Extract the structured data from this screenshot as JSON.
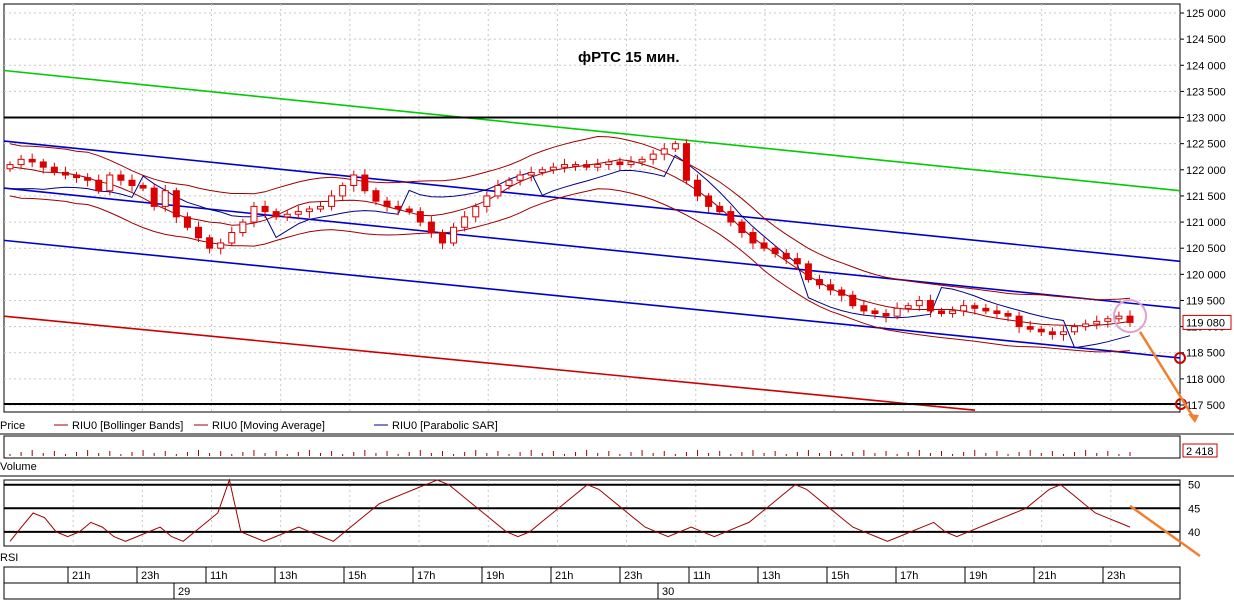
{
  "chart_data": [
    {
      "type": "candlestick",
      "title": "фРТС   15 мин.",
      "ylim": [
        117500,
        125000
      ],
      "y_ticks": [
        "125 000",
        "124 500",
        "124 000",
        "123 500",
        "123 000",
        "122 500",
        "122 000",
        "121 500",
        "121 000",
        "120 500",
        "120 000",
        "119 500",
        "119 000",
        "118 500",
        "118 000",
        "117 500"
      ],
      "y_tick_values": [
        125000,
        124500,
        124000,
        123500,
        123000,
        122500,
        122000,
        121500,
        121000,
        120500,
        120000,
        119500,
        119000,
        118500,
        118000,
        117500
      ],
      "last_price_label": "119 080",
      "last_price": 119080,
      "legend": [
        {
          "label": "Price",
          "color": "#000000"
        },
        {
          "label": "RIU0 [Bollinger Bands]",
          "color": "#a00000"
        },
        {
          "label": "RIU0 [Moving Average]",
          "color": "#a00000"
        },
        {
          "label": "RIU0 [Parabolic SAR]",
          "color": "#00008b"
        }
      ],
      "close_series": [
        122100,
        122200,
        122150,
        122050,
        121950,
        121900,
        121850,
        121800,
        121600,
        121900,
        121800,
        121700,
        121650,
        121300,
        121600,
        121100,
        120900,
        120700,
        120500,
        120600,
        120800,
        121000,
        121300,
        121200,
        121100,
        121150,
        121200,
        121250,
        121300,
        121500,
        121700,
        121900,
        121600,
        121400,
        121300,
        121250,
        121200,
        121000,
        120800,
        120600,
        120900,
        121100,
        121300,
        121500,
        121700,
        121800,
        121900,
        121950,
        122000,
        122050,
        122100,
        122100,
        122050,
        122100,
        122150,
        122100,
        122150,
        122200,
        122300,
        122400,
        122500,
        121800,
        121500,
        121300,
        121200,
        121000,
        120800,
        120600,
        120500,
        120400,
        120300,
        120200,
        119900,
        119800,
        119700,
        119600,
        119400,
        119300,
        119250,
        119200,
        119350,
        119400,
        119500,
        119300,
        119250,
        119300,
        119400,
        119350,
        119300,
        119250,
        119200,
        119000,
        118950,
        118900,
        118850,
        118900,
        119000,
        119050,
        119100,
        119150,
        119200,
        119080
      ],
      "lines": [
        {
          "name": "",
          "color": "#00cc00",
          "y_start": 123900,
          "y_end": 121600
        },
        {
          "name": "",
          "color": "#0000cc",
          "y_start": 122550,
          "y_end": 120250
        },
        {
          "name": "",
          "color": "#0000cc",
          "y_start": 121650,
          "y_end": 119350
        },
        {
          "name": "",
          "color": "#0000cc",
          "y_start": 120650,
          "y_end": 118400
        },
        {
          "name": "",
          "color": "#cc0000",
          "y_start": 119200,
          "y_end": 117400
        },
        {
          "name": "",
          "color": "#000000",
          "y_start": 123000,
          "y_end": 123000
        },
        {
          "name": "",
          "color": "#000000",
          "y_start": 117520,
          "y_end": 117520
        }
      ]
    },
    {
      "type": "bar",
      "panel": "Volume",
      "last_value_label": "2 418",
      "last_value": 2418
    },
    {
      "type": "line",
      "panel": "RSI",
      "ylim": [
        37,
        51
      ],
      "y_ticks": [
        "50",
        "45",
        "40"
      ],
      "y_tick_values": [
        50,
        45,
        40
      ],
      "ref_lines": [
        50,
        45,
        40
      ],
      "values": [
        38,
        41,
        44,
        43,
        40,
        39,
        40,
        42,
        41,
        39,
        38,
        39,
        40,
        41,
        39,
        38,
        40,
        42,
        44,
        51,
        40,
        39,
        38,
        39,
        40,
        41,
        40,
        39,
        38,
        40,
        42,
        44,
        46,
        47,
        48,
        49,
        50,
        51,
        50,
        48,
        46,
        44,
        42,
        40,
        39,
        40,
        42,
        44,
        46,
        48,
        50,
        49,
        47,
        45,
        43,
        41,
        40,
        39,
        40,
        41,
        40,
        39,
        40,
        41,
        42,
        44,
        46,
        48,
        50,
        49,
        47,
        45,
        43,
        41,
        40,
        39,
        38,
        39,
        40,
        41,
        42,
        40,
        39,
        40,
        41,
        42,
        43,
        44,
        45,
        47,
        49,
        50,
        48,
        46,
        44,
        43,
        42,
        41
      ]
    }
  ],
  "time_axis": {
    "hours": [
      "21h",
      "23h",
      "11h",
      "13h",
      "15h",
      "17h",
      "19h",
      "21h",
      "23h",
      "11h",
      "13h",
      "15h",
      "17h",
      "19h",
      "21h",
      "23h"
    ],
    "dates": [
      "29",
      "30"
    ]
  },
  "panel_labels": {
    "price": "Price",
    "volume": "Volume",
    "rsi": "RSI"
  },
  "colors": {
    "bull_candle": "#ffffff",
    "bear_candle": "#dd0000",
    "candle_outline": "#dd0000",
    "grid": "#c8c8c8",
    "orange_arrow": "#f08030",
    "highlight_circle": "#e0a0d0"
  }
}
